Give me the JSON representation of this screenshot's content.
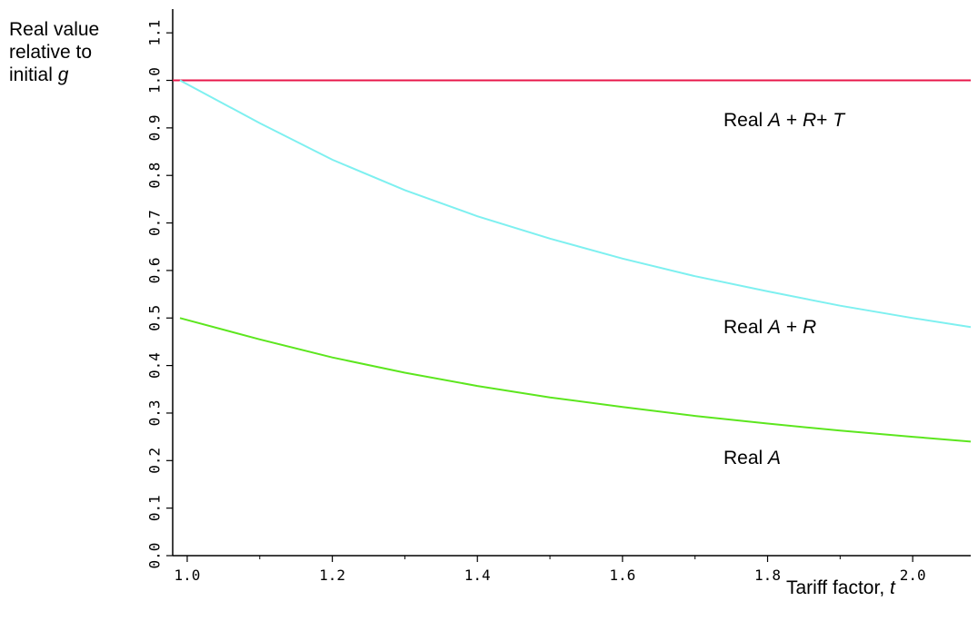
{
  "chart_data": {
    "type": "line",
    "title": "",
    "ylabel_lines": [
      "Real value",
      "relative to",
      "initial "
    ],
    "ylabel_symbol": "g",
    "xlabel_text": "Tariff factor, ",
    "xlabel_symbol": "t",
    "xlim": [
      0.98,
      2.08
    ],
    "ylim": [
      0.0,
      1.15
    ],
    "xticks": [
      1.0,
      1.2,
      1.4,
      1.6,
      1.8,
      2.0
    ],
    "xtick_labels": [
      "1.0",
      "1.2",
      "1.4",
      "1.6",
      "1.8",
      "2.0"
    ],
    "xminor": [
      1.1,
      1.3,
      1.5,
      1.7,
      1.9
    ],
    "yticks": [
      0.0,
      0.1,
      0.2,
      0.3,
      0.4,
      0.5,
      0.6,
      0.7,
      0.8,
      0.9,
      1.0,
      1.1
    ],
    "ytick_labels": [
      "0.0",
      "0.1",
      "0.2",
      "0.3",
      "0.4",
      "0.5",
      "0.6",
      "0.7",
      "0.8",
      "0.9",
      "1.0",
      "1.1"
    ],
    "grid": false,
    "series": [
      {
        "key": "art",
        "color": "#e8174a",
        "x": [
          0.98,
          1.2,
          1.4,
          1.6,
          1.8,
          2.0,
          2.08
        ],
        "y": [
          1.0,
          1.0,
          1.0,
          1.0,
          1.0,
          1.0,
          1.0
        ],
        "label_parts": [
          "Real ",
          "A",
          " + ",
          "R",
          "+ ",
          "T"
        ]
      },
      {
        "key": "ar",
        "color": "#7ef0f0",
        "x": [
          0.99,
          1.1,
          1.2,
          1.3,
          1.4,
          1.5,
          1.6,
          1.7,
          1.8,
          1.9,
          2.0,
          2.08
        ],
        "y": [
          1.0,
          0.91,
          0.833,
          0.769,
          0.714,
          0.667,
          0.625,
          0.588,
          0.556,
          0.526,
          0.5,
          0.481
        ],
        "label_parts": [
          "Real ",
          "A",
          " + ",
          "R"
        ]
      },
      {
        "key": "a",
        "color": "#5ce61e",
        "x": [
          0.99,
          1.1,
          1.2,
          1.3,
          1.4,
          1.5,
          1.6,
          1.7,
          1.8,
          1.9,
          2.0,
          2.08
        ],
        "y": [
          0.5,
          0.455,
          0.417,
          0.385,
          0.357,
          0.333,
          0.313,
          0.294,
          0.278,
          0.263,
          0.25,
          0.24
        ],
        "label_parts": [
          "Real ",
          "A"
        ]
      }
    ]
  }
}
